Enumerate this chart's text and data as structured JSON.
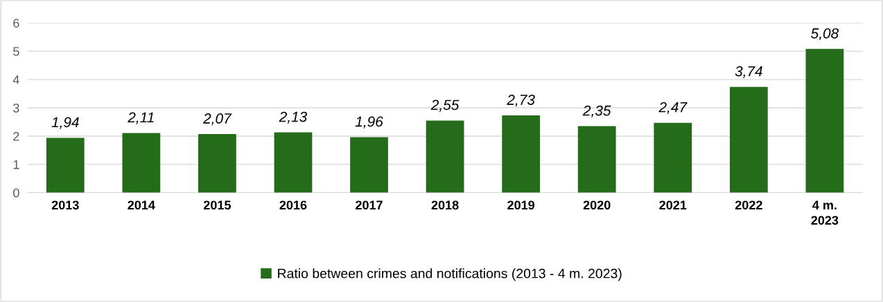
{
  "chart_data": {
    "type": "bar",
    "categories": [
      "2013",
      "2014",
      "2015",
      "2016",
      "2017",
      "2018",
      "2019",
      "2020",
      "2021",
      "2022",
      "4 m.\n2023"
    ],
    "series": [
      {
        "name": "Ratio between crimes and notifications (2013 - 4 m. 2023)",
        "color": "#256c1a",
        "values": [
          1.94,
          2.11,
          2.07,
          2.13,
          1.96,
          2.55,
          2.73,
          2.35,
          2.47,
          3.74,
          5.08
        ],
        "value_labels": [
          "1,94",
          "2,11",
          "2,07",
          "2,13",
          "1,96",
          "2,55",
          "2,73",
          "2,35",
          "2,47",
          "3,74",
          "5,08"
        ]
      }
    ],
    "ylim": [
      0,
      6
    ],
    "yticks": [
      0,
      1,
      2,
      3,
      4,
      5,
      6
    ],
    "grid": "y",
    "legend": "bottom"
  }
}
